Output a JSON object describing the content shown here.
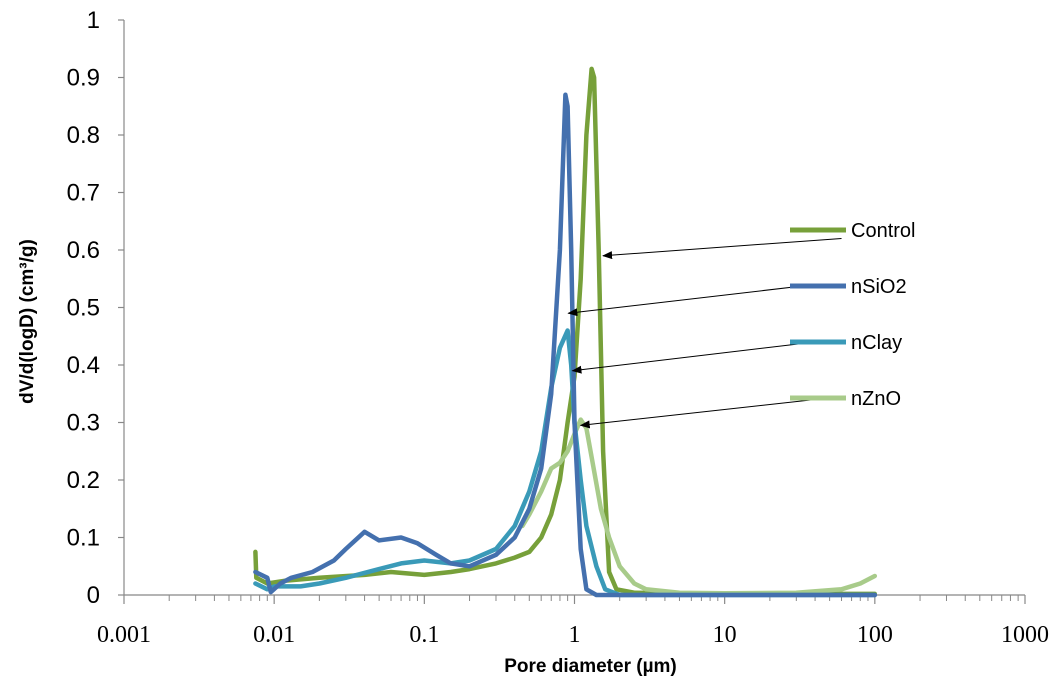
{
  "chart_data": {
    "type": "line",
    "xscale": "log",
    "xlim": [
      0.001,
      1000
    ],
    "ylim": [
      0,
      1
    ],
    "xlabel": "Pore diameter (µm)",
    "ylabel": "dV/d(logD) (cm³/g)",
    "x_ticks": [
      "0.001",
      "0.01",
      "0.1",
      "1",
      "10",
      "100",
      "1000"
    ],
    "y_ticks": [
      "0",
      "0.1",
      "0.2",
      "0.3",
      "0.4",
      "0.5",
      "0.6",
      "0.7",
      "0.8",
      "0.9",
      "1"
    ],
    "grid": false,
    "legend_position": "right",
    "series": [
      {
        "name": "Control",
        "color": "#77A03A",
        "points": [
          [
            0.0075,
            0.075
          ],
          [
            0.0076,
            0.03
          ],
          [
            0.009,
            0.02
          ],
          [
            0.012,
            0.025
          ],
          [
            0.02,
            0.03
          ],
          [
            0.04,
            0.035
          ],
          [
            0.06,
            0.04
          ],
          [
            0.1,
            0.035
          ],
          [
            0.15,
            0.04
          ],
          [
            0.2,
            0.045
          ],
          [
            0.3,
            0.055
          ],
          [
            0.4,
            0.065
          ],
          [
            0.5,
            0.075
          ],
          [
            0.6,
            0.1
          ],
          [
            0.7,
            0.14
          ],
          [
            0.8,
            0.2
          ],
          [
            0.9,
            0.3
          ],
          [
            1.0,
            0.38
          ],
          [
            1.1,
            0.55
          ],
          [
            1.2,
            0.8
          ],
          [
            1.3,
            0.915
          ],
          [
            1.35,
            0.9
          ],
          [
            1.45,
            0.6
          ],
          [
            1.55,
            0.25
          ],
          [
            1.7,
            0.04
          ],
          [
            1.9,
            0.01
          ],
          [
            2.5,
            0.004
          ],
          [
            10,
            0.002
          ],
          [
            100,
            0.002
          ]
        ]
      },
      {
        "name": "nSiO2",
        "color": "#4470AE",
        "points": [
          [
            0.0075,
            0.04
          ],
          [
            0.009,
            0.03
          ],
          [
            0.0095,
            0.005
          ],
          [
            0.011,
            0.02
          ],
          [
            0.013,
            0.03
          ],
          [
            0.018,
            0.04
          ],
          [
            0.025,
            0.06
          ],
          [
            0.03,
            0.08
          ],
          [
            0.04,
            0.11
          ],
          [
            0.05,
            0.095
          ],
          [
            0.07,
            0.1
          ],
          [
            0.09,
            0.09
          ],
          [
            0.12,
            0.07
          ],
          [
            0.15,
            0.055
          ],
          [
            0.2,
            0.05
          ],
          [
            0.3,
            0.07
          ],
          [
            0.4,
            0.1
          ],
          [
            0.5,
            0.15
          ],
          [
            0.6,
            0.22
          ],
          [
            0.7,
            0.35
          ],
          [
            0.8,
            0.6
          ],
          [
            0.87,
            0.87
          ],
          [
            0.9,
            0.85
          ],
          [
            0.95,
            0.6
          ],
          [
            1.0,
            0.3
          ],
          [
            1.1,
            0.08
          ],
          [
            1.2,
            0.01
          ],
          [
            1.4,
            0.0
          ],
          [
            100,
            0.0
          ]
        ]
      },
      {
        "name": "nClay",
        "color": "#3A9AB8",
        "points": [
          [
            0.0075,
            0.02
          ],
          [
            0.009,
            0.01
          ],
          [
            0.01,
            0.015
          ],
          [
            0.015,
            0.015
          ],
          [
            0.02,
            0.02
          ],
          [
            0.03,
            0.03
          ],
          [
            0.05,
            0.045
          ],
          [
            0.07,
            0.055
          ],
          [
            0.1,
            0.06
          ],
          [
            0.15,
            0.055
          ],
          [
            0.2,
            0.06
          ],
          [
            0.3,
            0.08
          ],
          [
            0.4,
            0.12
          ],
          [
            0.5,
            0.18
          ],
          [
            0.6,
            0.25
          ],
          [
            0.7,
            0.36
          ],
          [
            0.8,
            0.43
          ],
          [
            0.9,
            0.46
          ],
          [
            0.95,
            0.4
          ],
          [
            1.0,
            0.3
          ],
          [
            1.1,
            0.2
          ],
          [
            1.2,
            0.12
          ],
          [
            1.4,
            0.05
          ],
          [
            1.6,
            0.01
          ],
          [
            2.0,
            0.0
          ],
          [
            100,
            0.0
          ]
        ]
      },
      {
        "name": "nZnO",
        "color": "#A8CB8A",
        "points": [
          [
            0.45,
            0.12
          ],
          [
            0.5,
            0.14
          ],
          [
            0.6,
            0.18
          ],
          [
            0.7,
            0.22
          ],
          [
            0.8,
            0.23
          ],
          [
            0.9,
            0.25
          ],
          [
            1.0,
            0.28
          ],
          [
            1.1,
            0.305
          ],
          [
            1.2,
            0.29
          ],
          [
            1.3,
            0.24
          ],
          [
            1.5,
            0.15
          ],
          [
            1.7,
            0.1
          ],
          [
            2.0,
            0.05
          ],
          [
            2.5,
            0.02
          ],
          [
            3.0,
            0.01
          ],
          [
            5.0,
            0.004
          ],
          [
            10,
            0.003
          ],
          [
            30,
            0.004
          ],
          [
            60,
            0.01
          ],
          [
            80,
            0.02
          ],
          [
            100,
            0.033
          ]
        ]
      }
    ],
    "annotations": [
      {
        "series": "Control",
        "from": [
          60,
          0.62
        ],
        "to": [
          1.55,
          0.59
        ]
      },
      {
        "series": "nSiO2",
        "from": [
          40,
          0.54
        ],
        "to": [
          0.91,
          0.49
        ]
      },
      {
        "series": "nClay",
        "from": [
          40,
          0.44
        ],
        "to": [
          0.97,
          0.39
        ]
      },
      {
        "series": "nZnO",
        "from": [
          40,
          0.34
        ],
        "to": [
          1.1,
          0.295
        ]
      }
    ]
  }
}
